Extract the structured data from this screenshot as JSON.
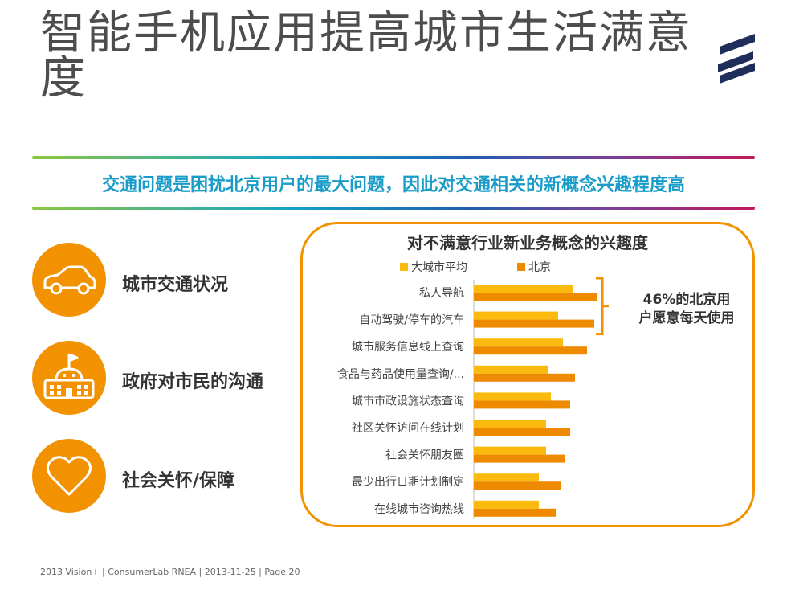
{
  "title": "智能手机应用提高城市生活满意度",
  "subtitle": "交通问题是困扰北京用户的最大问题，因此对交通相关的新概念兴趣程度高",
  "side_items": [
    {
      "label": "城市交通状况",
      "icon": "car-icon"
    },
    {
      "label": "政府对市民的沟通",
      "icon": "government-building-icon"
    },
    {
      "label": "社会关怀/保障",
      "icon": "heart-icon"
    }
  ],
  "callout": {
    "line1": "46%的北京用",
    "line2": "户愿意每天使用"
  },
  "footer": "2013 Vision+  |  ConsumerLab RNEA  |  2013-11-25  |  Page 20",
  "colors": {
    "orange": "#f39200",
    "light_orange": "#fbbb0e",
    "dark_orange": "#ee8a00",
    "teal": "#1a9cc9",
    "logo_navy": "#1f2d5a"
  },
  "chart_data": {
    "type": "bar",
    "orientation": "horizontal",
    "title": "对不满意行业新业务概念的兴趣度",
    "categories": [
      "私人导航",
      "自动驾驶/停车的汽车",
      "城市服务信息线上查询",
      "食品与药品使用量查询/...",
      "城市市政设施状态查询",
      "社区关怀访问在线计划",
      "社会关怀朋友圈",
      "最少出行日期计划制定",
      "在线城市咨询热线"
    ],
    "series": [
      {
        "name": "大城市平均",
        "color": "#fbbb0e",
        "values": [
          41,
          35,
          37,
          31,
          32,
          30,
          30,
          27,
          27
        ]
      },
      {
        "name": "北京",
        "color": "#ee8a00",
        "values": [
          51,
          50,
          47,
          42,
          40,
          40,
          38,
          36,
          34
        ]
      }
    ],
    "xlim": [
      0,
      60
    ],
    "grid": false,
    "legend": "top"
  }
}
